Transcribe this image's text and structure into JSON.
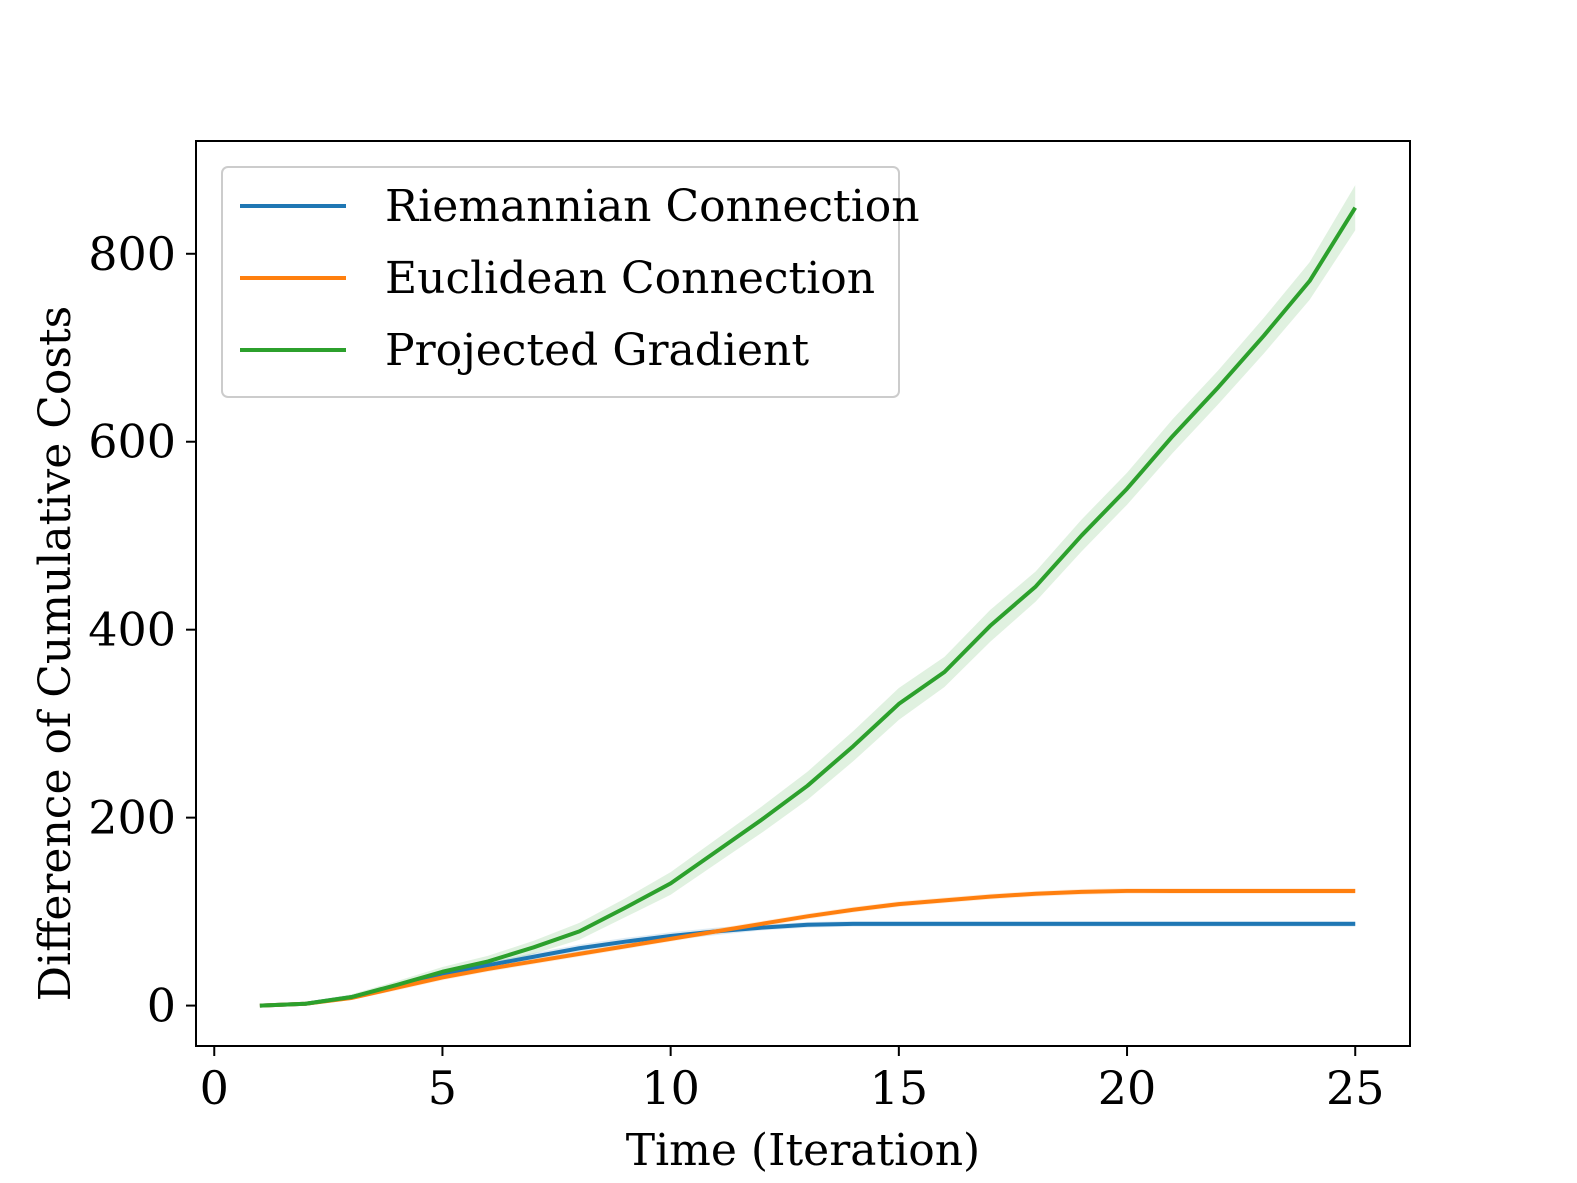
{
  "chart_data": {
    "type": "line",
    "title": "",
    "xlabel": "Time (Iteration)",
    "ylabel": "Difference of Cumulative Costs",
    "xlim": [
      -0.4,
      26.2
    ],
    "ylim": [
      -43,
      920
    ],
    "xticks": [
      0,
      5,
      10,
      15,
      20,
      25
    ],
    "yticks": [
      0,
      200,
      400,
      600,
      800
    ],
    "grid": false,
    "legend_position": "upper-left",
    "x": [
      1,
      2,
      3,
      4,
      5,
      6,
      7,
      8,
      9,
      10,
      11,
      12,
      13,
      14,
      15,
      16,
      17,
      18,
      19,
      20,
      21,
      22,
      23,
      24,
      25
    ],
    "series": [
      {
        "name": "Riemannian Connection",
        "color": "#1f77b4",
        "values": [
          0,
          2,
          9,
          21,
          33,
          43,
          52,
          61,
          68,
          74,
          79,
          83,
          86,
          87,
          87,
          87,
          87,
          87,
          87,
          87,
          87,
          87,
          87,
          87,
          87
        ],
        "band": [
          2,
          2,
          2,
          3,
          3,
          3,
          4,
          4,
          4,
          4,
          4,
          3,
          3,
          3,
          3,
          3,
          3,
          3,
          3,
          3,
          3,
          3,
          3,
          3,
          3
        ]
      },
      {
        "name": "Euclidean Connection",
        "color": "#ff7f0e",
        "values": [
          0,
          2,
          8,
          19,
          30,
          39,
          47,
          55,
          63,
          71,
          79,
          87,
          95,
          102,
          108,
          112,
          116,
          119,
          121,
          122,
          122,
          122,
          122,
          122,
          122
        ],
        "band": [
          2,
          2,
          2,
          3,
          3,
          3,
          3,
          3,
          3,
          3,
          3,
          3,
          3,
          3,
          3,
          3,
          3,
          3,
          3,
          3,
          3,
          3,
          3,
          3,
          3
        ]
      },
      {
        "name": "Projected Gradient",
        "color": "#2ca02c",
        "values": [
          0,
          2,
          9,
          22,
          36,
          47,
          62,
          79,
          104,
          130,
          164,
          198,
          234,
          276,
          321,
          355,
          404,
          446,
          500,
          550,
          606,
          658,
          713,
          771,
          849
        ],
        "band": [
          2,
          2,
          3,
          4,
          5,
          6,
          7,
          9,
          10,
          12,
          13,
          14,
          15,
          16,
          17,
          16,
          17,
          16,
          17,
          17,
          18,
          18,
          19,
          20,
          24
        ]
      }
    ]
  }
}
